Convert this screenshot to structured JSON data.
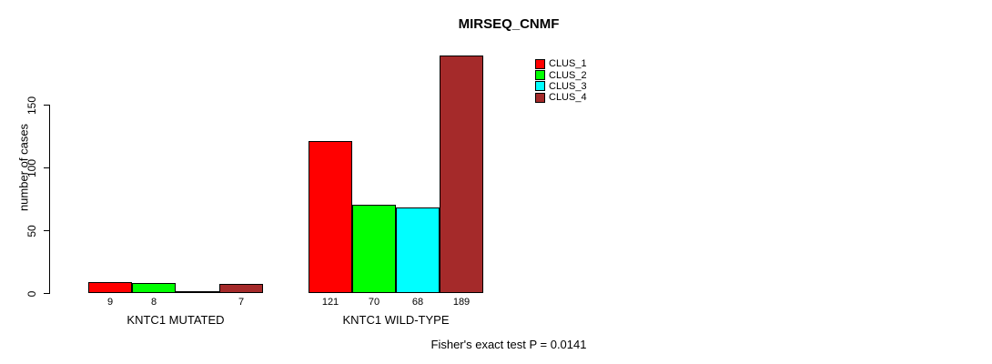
{
  "chart_data": {
    "type": "bar",
    "title": "MIRSEQ_CNMF",
    "ylabel": "number of cases",
    "xlabel": "",
    "ylim": [
      0,
      150
    ],
    "yticks": [
      0,
      50,
      100,
      150
    ],
    "grid": false,
    "legend_position": "top-right",
    "categories": [
      "KNTC1 MUTATED",
      "KNTC1 WILD-TYPE"
    ],
    "series": [
      {
        "name": "CLUS_1",
        "color": "#FF0000",
        "values": [
          9,
          121
        ]
      },
      {
        "name": "CLUS_2",
        "color": "#00FF00",
        "values": [
          8,
          70
        ]
      },
      {
        "name": "CLUS_3",
        "color": "#00FFFF",
        "values": [
          0,
          68
        ]
      },
      {
        "name": "CLUS_4",
        "color": "#A52A2A",
        "values": [
          7,
          189
        ]
      }
    ],
    "bar_value_labels": [
      [
        "9",
        "8",
        "",
        "7"
      ],
      [
        "121",
        "70",
        "68",
        "189"
      ]
    ],
    "annotation": "Fisher's exact test P = 0.0141"
  }
}
